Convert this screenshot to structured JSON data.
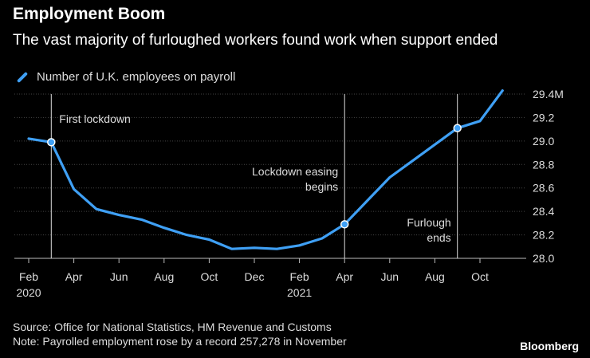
{
  "title": "Employment Boom",
  "subtitle": "The vast majority of furloughed workers found work when support ended",
  "source": "Source: Office for National Statistics, HM Revenue and Customs",
  "note": "Note: Payrolled employment rose by a record 257,278 in November",
  "brand": "Bloomberg",
  "chart_data": {
    "type": "line",
    "x": [
      "2020-02",
      "2020-03",
      "2020-04",
      "2020-05",
      "2020-06",
      "2020-07",
      "2020-08",
      "2020-09",
      "2020-10",
      "2020-11",
      "2020-12",
      "2021-01",
      "2021-02",
      "2021-03",
      "2021-04",
      "2021-05",
      "2021-06",
      "2021-07",
      "2021-08",
      "2021-09",
      "2021-10",
      "2021-11"
    ],
    "series": [
      {
        "name": "Number of U.K. employees on payroll",
        "values": [
          29.02,
          28.99,
          28.59,
          28.42,
          28.37,
          28.33,
          28.26,
          28.2,
          28.16,
          28.08,
          28.09,
          28.08,
          28.11,
          28.17,
          28.29,
          28.49,
          28.69,
          28.83,
          28.97,
          29.11,
          29.17,
          29.43
        ],
        "color": "#3fa0f5"
      }
    ],
    "ylim": [
      28.0,
      29.4
    ],
    "y_ticks": [
      {
        "value": 28.0,
        "label": "28.0"
      },
      {
        "value": 28.2,
        "label": "28.2"
      },
      {
        "value": 28.4,
        "label": "28.4"
      },
      {
        "value": 28.6,
        "label": "28.6"
      },
      {
        "value": 28.8,
        "label": "28.8"
      },
      {
        "value": 29.0,
        "label": "29.0"
      },
      {
        "value": 29.2,
        "label": "29.2"
      },
      {
        "value": 29.4,
        "label": "29.4M"
      }
    ],
    "x_ticks": [
      {
        "x": "2020-02",
        "label": "Feb",
        "year": "2020"
      },
      {
        "x": "2020-04",
        "label": "Apr",
        "year": ""
      },
      {
        "x": "2020-06",
        "label": "Jun",
        "year": ""
      },
      {
        "x": "2020-08",
        "label": "Aug",
        "year": ""
      },
      {
        "x": "2020-10",
        "label": "Oct",
        "year": ""
      },
      {
        "x": "2020-12",
        "label": "Dec",
        "year": ""
      },
      {
        "x": "2021-02",
        "label": "Feb",
        "year": "2021"
      },
      {
        "x": "2021-04",
        "label": "Apr",
        "year": ""
      },
      {
        "x": "2021-06",
        "label": "Jun",
        "year": ""
      },
      {
        "x": "2021-08",
        "label": "Aug",
        "year": ""
      },
      {
        "x": "2021-10",
        "label": "Oct",
        "year": ""
      }
    ],
    "annotations": [
      {
        "x": "2020-03",
        "lines": [
          "First lockdown"
        ],
        "marker_value": 28.99,
        "align": "right"
      },
      {
        "x": "2021-04",
        "lines": [
          "Lockdown easing",
          "begins"
        ],
        "marker_value": 28.29,
        "align": "left"
      },
      {
        "x": "2021-09",
        "lines": [
          "Furlough",
          "ends"
        ],
        "marker_value": 29.11,
        "align": "left"
      }
    ],
    "grid": true,
    "legend": "top-left"
  }
}
